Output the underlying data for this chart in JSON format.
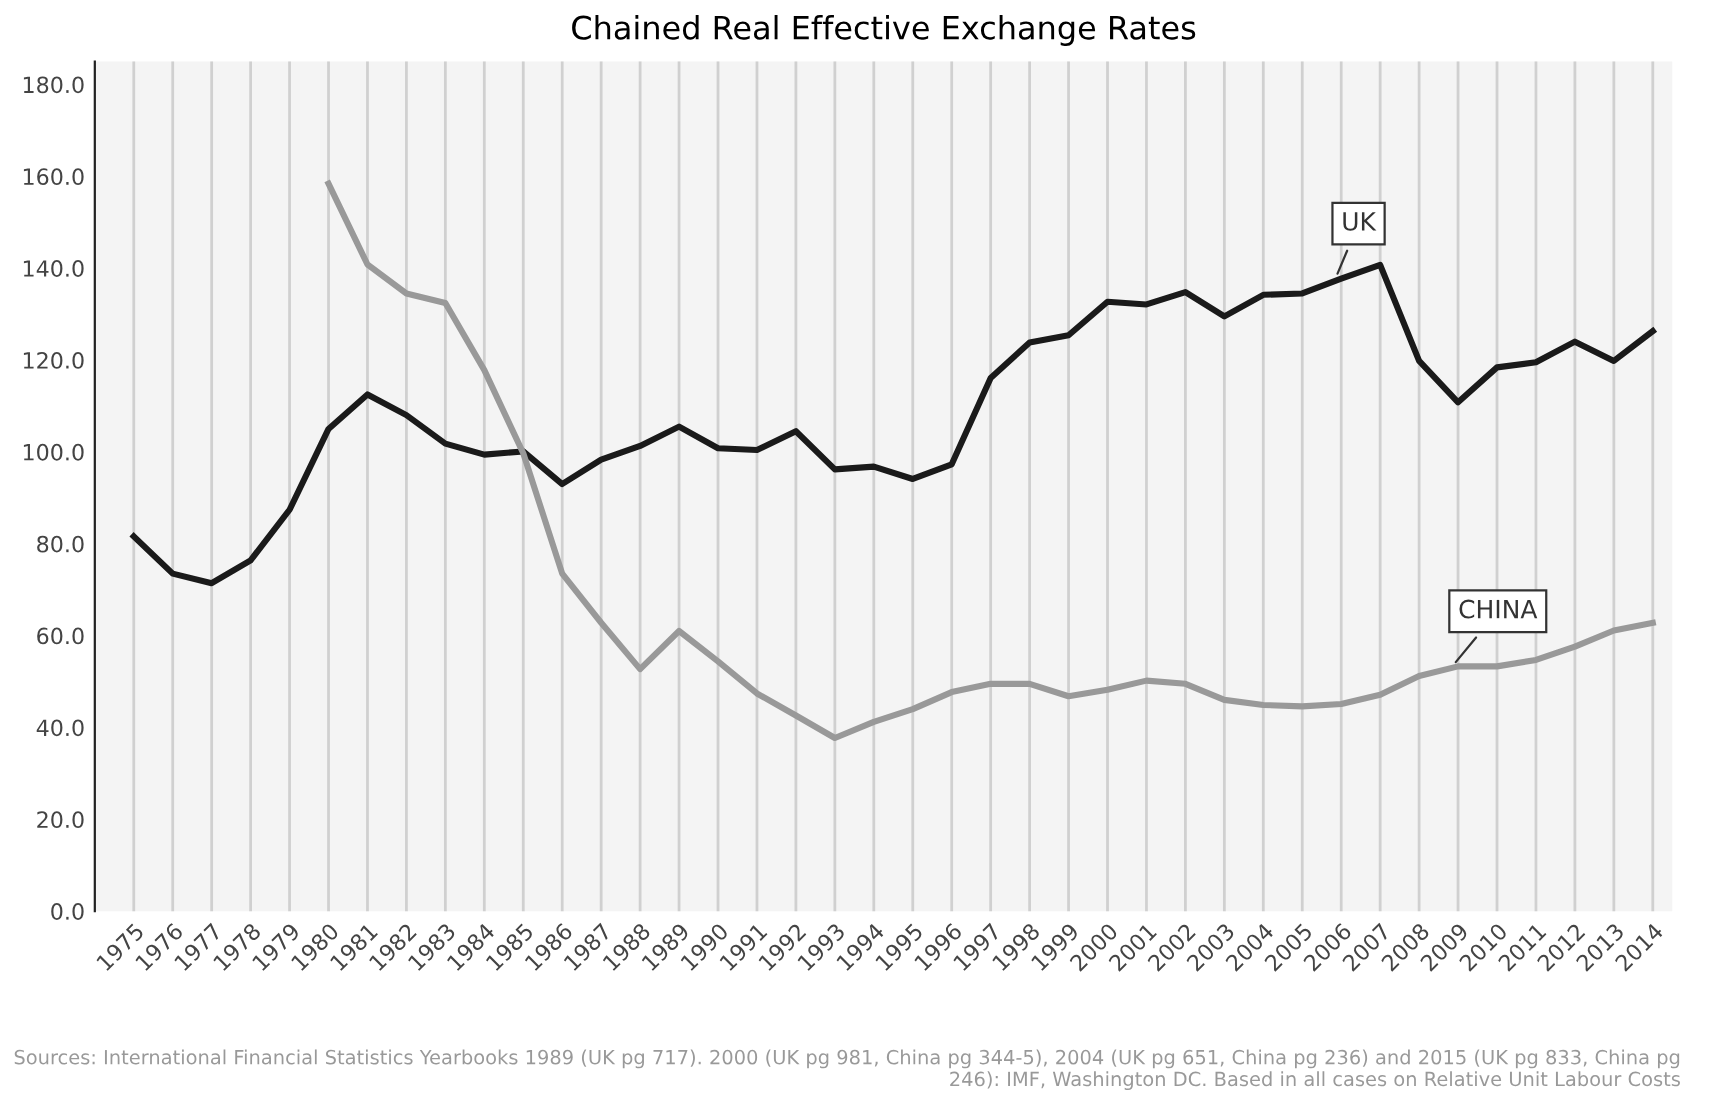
{
  "chart_data": {
    "type": "line",
    "title": "Chained Real Effective Exchange Rates",
    "categories": [
      "1975",
      "1976",
      "1977",
      "1978",
      "1979",
      "1980",
      "1981",
      "1982",
      "1983",
      "1984",
      "1985",
      "1986",
      "1987",
      "1988",
      "1989",
      "1990",
      "1991",
      "1992",
      "1993",
      "1994",
      "1995",
      "1996",
      "1997",
      "1998",
      "1999",
      "2000",
      "2001",
      "2002",
      "2003",
      "2004",
      "2005",
      "2006",
      "2007",
      "2008",
      "2009",
      "2010",
      "2011",
      "2012",
      "2013",
      "2014"
    ],
    "series": [
      {
        "name": "UK",
        "color": "#1a1a1a",
        "values": [
          81.6,
          73.5,
          71.4,
          76.4,
          87.4,
          105.0,
          112.5,
          108.0,
          101.8,
          99.4,
          100.1,
          93.0,
          98.3,
          101.3,
          105.5,
          100.8,
          100.4,
          104.5,
          96.2,
          96.8,
          94.1,
          97.3,
          116.1,
          123.8,
          125.4,
          132.7,
          132.1,
          134.8,
          129.5,
          134.2,
          134.5,
          137.7,
          140.7,
          119.8,
          110.8,
          118.4,
          119.5,
          124.0,
          119.8,
          126.3
        ]
      },
      {
        "name": "CHINA",
        "color": "#999999",
        "values": [
          null,
          null,
          null,
          null,
          null,
          158.4,
          140.8,
          134.5,
          132.4,
          117.8,
          99.7,
          73.5,
          62.8,
          52.7,
          61.0,
          54.4,
          47.4,
          42.6,
          37.7,
          41.2,
          44.0,
          47.7,
          49.5,
          49.5,
          46.8,
          48.2,
          50.2,
          49.5,
          46.0,
          44.9,
          44.6,
          45.1,
          47.1,
          51.2,
          53.3,
          53.3,
          54.7,
          57.6,
          61.1,
          62.8
        ]
      }
    ],
    "ylim": [
      0,
      185
    ],
    "yticks": [
      {
        "value": 0,
        "label": "0.0"
      },
      {
        "value": 20,
        "label": "20.0"
      },
      {
        "value": 40,
        "label": "40.0"
      },
      {
        "value": 60,
        "label": "60.0"
      },
      {
        "value": 80,
        "label": "80.0"
      },
      {
        "value": 100,
        "label": "100.0"
      },
      {
        "value": 120,
        "label": "120.0"
      },
      {
        "value": 140,
        "label": "140.0"
      },
      {
        "value": 160,
        "label": "160.0"
      },
      {
        "value": 180,
        "label": "180.0"
      }
    ],
    "grid": "x",
    "legend": false,
    "marker": "none",
    "line_style": "solid",
    "annotations": [
      "Sources: International Financial Statistics Yearbooks 1989 (UK pg 717). 2000 (UK pg 981, China pg 344-5), 2004 (UK pg 651, China pg 236) and 2015 (UK pg 833, China pg 246): IMF, Washington DC. Based in all cases on Relative Unit Labour Costs"
    ]
  }
}
